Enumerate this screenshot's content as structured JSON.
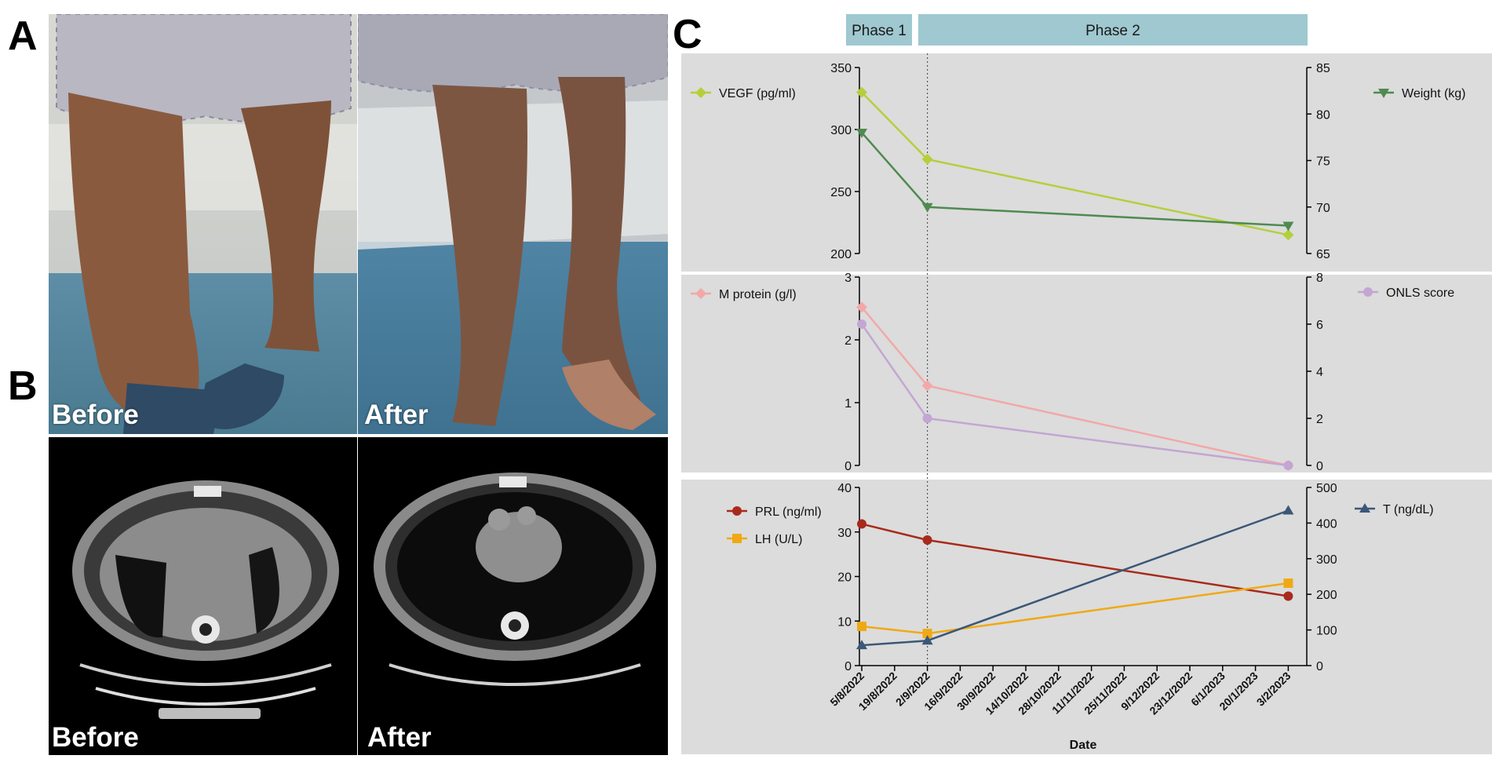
{
  "panels": {
    "a": "A",
    "b": "B",
    "c": "C"
  },
  "photos": {
    "before_label": "Before",
    "after_label": "After"
  },
  "chart_data": {
    "type": "line",
    "phases": [
      "Phase 1",
      "Phase 2"
    ],
    "xlabel": "Date",
    "x_ticks": [
      "5/8/2022",
      "19/8/2022",
      "2/9/2022",
      "16/9/2022",
      "30/9/2022",
      "14/10/2022",
      "28/10/2022",
      "11/11/2022",
      "25/11/2022",
      "9/12/2022",
      "23/12/2022",
      "6/1/2023",
      "20/1/2023",
      "3/2/2023"
    ],
    "phase_boundary": "2/9/2022",
    "panels": [
      {
        "left_axis": {
          "ylim": [
            200,
            350
          ],
          "ticks": [
            200,
            250,
            300,
            350
          ]
        },
        "right_axis": {
          "ylim": [
            65,
            85
          ],
          "ticks": [
            65,
            70,
            75,
            80,
            85
          ]
        },
        "series": [
          {
            "name": "VEGF (pg/ml)",
            "axis": "left",
            "color": "#b5cf3c",
            "marker": "diamond",
            "points": [
              [
                "5/8/2022",
                330
              ],
              [
                "2/9/2022",
                276
              ],
              [
                "3/2/2023",
                215
              ]
            ]
          },
          {
            "name": "Weight (kg)",
            "axis": "right",
            "color": "#4f8a50",
            "marker": "triangle-down",
            "points": [
              [
                "5/8/2022",
                78
              ],
              [
                "2/9/2022",
                70
              ],
              [
                "3/2/2023",
                68
              ]
            ]
          }
        ]
      },
      {
        "left_axis": {
          "ylim": [
            0,
            3
          ],
          "ticks": [
            0,
            1,
            2,
            3
          ]
        },
        "right_axis": {
          "ylim": [
            0,
            8
          ],
          "ticks": [
            0,
            2,
            4,
            6,
            8
          ]
        },
        "series": [
          {
            "name": "M protein (g/l)",
            "axis": "left",
            "color": "#f3a8a8",
            "marker": "diamond",
            "points": [
              [
                "5/8/2022",
                2.52
              ],
              [
                "2/9/2022",
                1.27
              ],
              [
                "3/2/2023",
                0
              ]
            ]
          },
          {
            "name": "ONLS score",
            "axis": "right",
            "color": "#c3a6d3",
            "marker": "circle",
            "points": [
              [
                "5/8/2022",
                6
              ],
              [
                "2/9/2022",
                2
              ],
              [
                "3/2/2023",
                0
              ]
            ]
          }
        ]
      },
      {
        "left_axis": {
          "ylim": [
            0,
            40
          ],
          "ticks": [
            0,
            10,
            20,
            30,
            40
          ]
        },
        "right_axis": {
          "ylim": [
            0,
            500
          ],
          "ticks": [
            0,
            100,
            200,
            300,
            400,
            500
          ]
        },
        "series": [
          {
            "name": "PRL (ng/ml)",
            "axis": "left",
            "color": "#a82a1c",
            "marker": "circle",
            "points": [
              [
                "5/8/2022",
                31.8
              ],
              [
                "2/9/2022",
                28.2
              ],
              [
                "3/2/2023",
                15.6
              ]
            ]
          },
          {
            "name": "LH (U/L)",
            "axis": "left",
            "color": "#f0a914",
            "marker": "square",
            "points": [
              [
                "5/8/2022",
                8.8
              ],
              [
                "2/9/2022",
                7.2
              ],
              [
                "3/2/2023",
                18.5
              ]
            ]
          },
          {
            "name": "T (ng/dL)",
            "axis": "right",
            "color": "#3b5777",
            "marker": "triangle-up",
            "points": [
              [
                "5/8/2022",
                57
              ],
              [
                "2/9/2022",
                70
              ],
              [
                "3/2/2023",
                435
              ]
            ]
          }
        ]
      }
    ]
  }
}
